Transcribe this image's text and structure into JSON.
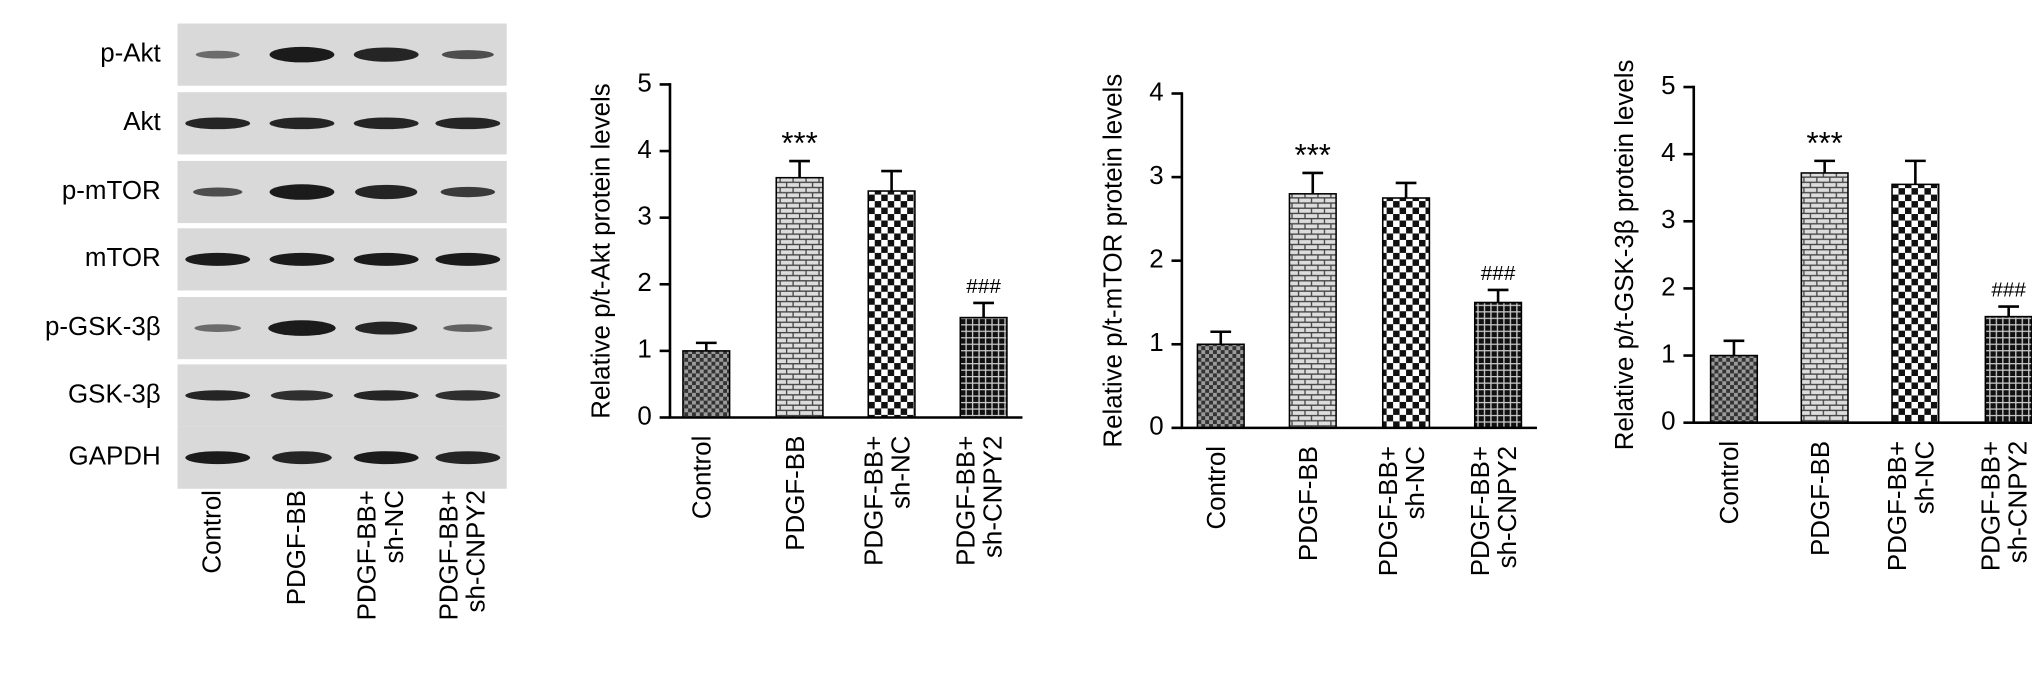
{
  "blot": {
    "row_labels": [
      "p-Akt",
      "Akt",
      "p-mTOR",
      "mTOR",
      "p-GSK-3β",
      "GSK-3β",
      "GAPDH"
    ],
    "lanes": [
      "Control",
      "PDGF-BB",
      "PDGF-BB+ sh-NC",
      "PDGF-BB+ sh-CNPY2"
    ]
  },
  "chart_data": [
    {
      "type": "bar",
      "y_label": "Relative p/t-Akt protein levels",
      "categories": [
        "Control",
        "PDGF-BB",
        "PDGF-BB+ sh-NC",
        "PDGF-BB+ sh-CNPY2"
      ],
      "values": [
        1.0,
        3.6,
        3.4,
        1.5
      ],
      "errors": [
        0.12,
        0.25,
        0.3,
        0.22
      ],
      "significance": [
        null,
        "***",
        null,
        "###"
      ],
      "ylim": [
        0,
        5
      ],
      "yticks": [
        0,
        1,
        2,
        3,
        4,
        5
      ],
      "bar_patterns": [
        "checker-fine",
        "brick",
        "checker",
        "grid"
      ],
      "color": "#000000"
    },
    {
      "type": "bar",
      "y_label": "Relative p/t-mTOR protein levels",
      "categories": [
        "Control",
        "PDGF-BB",
        "PDGF-BB+ sh-NC",
        "PDGF-BB+ sh-CNPY2"
      ],
      "values": [
        1.0,
        2.8,
        2.75,
        1.5
      ],
      "errors": [
        0.15,
        0.25,
        0.18,
        0.15
      ],
      "significance": [
        null,
        "***",
        null,
        "###"
      ],
      "ylim": [
        0,
        4
      ],
      "yticks": [
        0,
        1,
        2,
        3,
        4
      ],
      "bar_patterns": [
        "checker-fine",
        "brick",
        "checker",
        "grid"
      ],
      "color": "#000000"
    },
    {
      "type": "bar",
      "y_label": "Relative p/t-GSK-3β protein levels",
      "categories": [
        "Control",
        "PDGF-BB",
        "PDGF-BB+ sh-NC",
        "PDGF-BB+ sh-CNPY2"
      ],
      "values": [
        1.0,
        3.72,
        3.55,
        1.58
      ],
      "errors": [
        0.22,
        0.18,
        0.35,
        0.15
      ],
      "significance": [
        null,
        "***",
        null,
        "###"
      ],
      "ylim": [
        0,
        5
      ],
      "yticks": [
        0,
        1,
        2,
        3,
        4,
        5
      ],
      "bar_patterns": [
        "checker-fine",
        "brick",
        "checker",
        "grid"
      ],
      "color": "#000000"
    }
  ]
}
